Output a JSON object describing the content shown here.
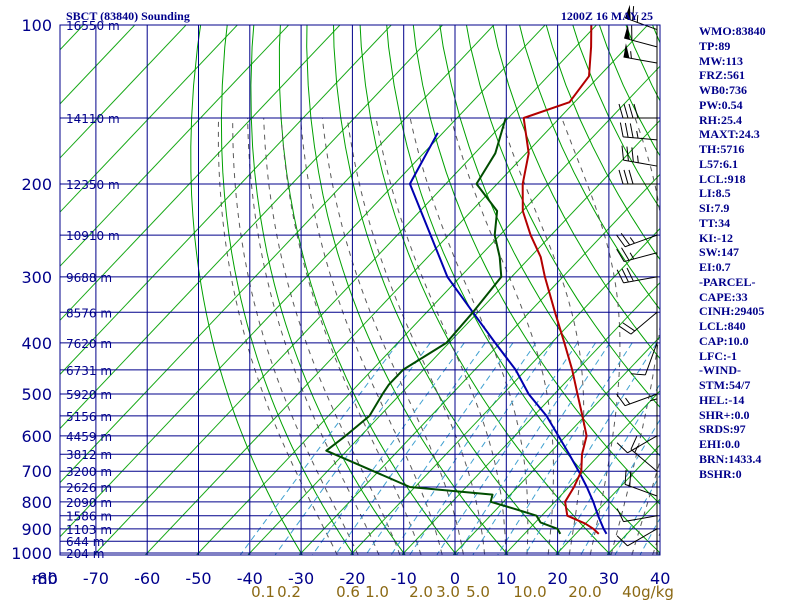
{
  "chart_data": {
    "type": "skew-t",
    "title_left": "SBCT (83840) Sounding",
    "title_right": "1200Z 16 MAY 25",
    "corner_label": "mb",
    "pressure_levels": [
      100,
      200,
      300,
      400,
      500,
      600,
      700,
      800,
      900,
      1000
    ],
    "pressure_labels": [
      "100",
      "200",
      "300",
      "400",
      "500",
      "600",
      "700",
      "800",
      "900",
      "1000"
    ],
    "height_labels": [
      {
        "p": 100,
        "text": "16550 m"
      },
      {
        "p": 150,
        "text": "14110 m"
      },
      {
        "p": 200,
        "text": "12350 m"
      },
      {
        "p": 250,
        "text": "10910 m"
      },
      {
        "p": 300,
        "text": "9688 m"
      },
      {
        "p": 350,
        "text": "8576 m"
      },
      {
        "p": 400,
        "text": "7620 m"
      },
      {
        "p": 450,
        "text": "6731 m"
      },
      {
        "p": 500,
        "text": "5920 m"
      },
      {
        "p": 550,
        "text": "5156 m"
      },
      {
        "p": 600,
        "text": "4459 m"
      },
      {
        "p": 650,
        "text": "3812 m"
      },
      {
        "p": 700,
        "text": "3200 m"
      },
      {
        "p": 750,
        "text": "2626 m"
      },
      {
        "p": 800,
        "text": "2090 m"
      },
      {
        "p": 850,
        "text": "1586 m"
      },
      {
        "p": 900,
        "text": "1103 m"
      },
      {
        "p": 950,
        "text": "644 m"
      },
      {
        "p": 1000,
        "text": "204 m"
      }
    ],
    "temperature_ticks": [
      -80,
      -70,
      -60,
      -50,
      -40,
      -30,
      -20,
      -10,
      0,
      10,
      20,
      30,
      40
    ],
    "temperature_tick_labels": [
      "-80",
      "-70",
      "-60",
      "-50",
      "-40",
      "-30",
      "-20",
      "-10",
      "0",
      "10",
      "20",
      "30",
      "40"
    ],
    "mixing_ratio_labels": [
      "0.1",
      "0.2",
      "0.6",
      "1.0",
      "2.0",
      "3.0",
      "5.0",
      "10.0",
      "20.0",
      "40g/kg"
    ],
    "temperature_profile": [
      {
        "p": 100,
        "t": -71.0
      },
      {
        "p": 110,
        "t": -67.0
      },
      {
        "p": 125,
        "t": -62.0
      },
      {
        "p": 140,
        "t": -61.0
      },
      {
        "p": 150,
        "t": -67.0
      },
      {
        "p": 175,
        "t": -59.5
      },
      {
        "p": 200,
        "t": -55.0
      },
      {
        "p": 225,
        "t": -50.0
      },
      {
        "p": 250,
        "t": -44.0
      },
      {
        "p": 275,
        "t": -38.0
      },
      {
        "p": 300,
        "t": -33.5
      },
      {
        "p": 350,
        "t": -25.0
      },
      {
        "p": 400,
        "t": -17.5
      },
      {
        "p": 450,
        "t": -11.0
      },
      {
        "p": 500,
        "t": -5.5
      },
      {
        "p": 550,
        "t": -0.5
      },
      {
        "p": 600,
        "t": 4.0
      },
      {
        "p": 650,
        "t": 6.5
      },
      {
        "p": 700,
        "t": 9.5
      },
      {
        "p": 750,
        "t": 11.0
      },
      {
        "p": 800,
        "t": 12.0
      },
      {
        "p": 850,
        "t": 15.0
      },
      {
        "p": 880,
        "t": 20.0
      },
      {
        "p": 900,
        "t": 22.5
      },
      {
        "p": 920,
        "t": 24.5
      }
    ],
    "dewpoint_profile": [
      {
        "p": 150,
        "t": -70.5
      },
      {
        "p": 175,
        "t": -66.0
      },
      {
        "p": 200,
        "t": -64.0
      },
      {
        "p": 225,
        "t": -55.0
      },
      {
        "p": 250,
        "t": -51.0
      },
      {
        "p": 275,
        "t": -46.0
      },
      {
        "p": 300,
        "t": -42.0
      },
      {
        "p": 350,
        "t": -41.0
      },
      {
        "p": 400,
        "t": -40.5
      },
      {
        "p": 450,
        "t": -44.0
      },
      {
        "p": 480,
        "t": -44.0
      },
      {
        "p": 500,
        "t": -43.5
      },
      {
        "p": 550,
        "t": -42.0
      },
      {
        "p": 600,
        "t": -43.0
      },
      {
        "p": 640,
        "t": -44.0
      },
      {
        "p": 700,
        "t": -31.0
      },
      {
        "p": 750,
        "t": -21.0
      },
      {
        "p": 775,
        "t": -3.5
      },
      {
        "p": 800,
        "t": -2.5
      },
      {
        "p": 825,
        "t": 3.5
      },
      {
        "p": 850,
        "t": 9.0
      },
      {
        "p": 875,
        "t": 11.0
      },
      {
        "p": 900,
        "t": 15.5
      },
      {
        "p": 920,
        "t": 17.0
      }
    ],
    "parcel_profile": [
      {
        "p": 160,
        "t": -81.0
      },
      {
        "p": 200,
        "t": -77.0
      },
      {
        "p": 250,
        "t": -63.5
      },
      {
        "p": 300,
        "t": -52.5
      },
      {
        "p": 350,
        "t": -41.0
      },
      {
        "p": 400,
        "t": -31.0
      },
      {
        "p": 450,
        "t": -22.0
      },
      {
        "p": 500,
        "t": -15.0
      },
      {
        "p": 550,
        "t": -7.5
      },
      {
        "p": 600,
        "t": -1.5
      },
      {
        "p": 650,
        "t": 4.0
      },
      {
        "p": 700,
        "t": 9.0
      },
      {
        "p": 750,
        "t": 13.5
      },
      {
        "p": 800,
        "t": 17.5
      },
      {
        "p": 850,
        "t": 21.0
      },
      {
        "p": 900,
        "t": 24.5
      },
      {
        "p": 920,
        "t": 26.0
      }
    ],
    "wind_barbs": [
      {
        "p": 102,
        "dir": 290,
        "kt": 65
      },
      {
        "p": 110,
        "dir": 285,
        "kt": 60
      },
      {
        "p": 118,
        "dir": 280,
        "kt": 55
      },
      {
        "p": 150,
        "dir": 270,
        "kt": 40
      },
      {
        "p": 165,
        "dir": 275,
        "kt": 35
      },
      {
        "p": 185,
        "dir": 280,
        "kt": 35
      },
      {
        "p": 200,
        "dir": 270,
        "kt": 30
      },
      {
        "p": 250,
        "dir": 250,
        "kt": 25
      },
      {
        "p": 270,
        "dir": 255,
        "kt": 25
      },
      {
        "p": 300,
        "dir": 260,
        "kt": 30
      },
      {
        "p": 350,
        "dir": 230,
        "kt": 20
      },
      {
        "p": 400,
        "dir": 200,
        "kt": 10
      },
      {
        "p": 450,
        "dir": 180,
        "kt": 5
      },
      {
        "p": 500,
        "dir": 250,
        "kt": 15
      },
      {
        "p": 600,
        "dir": 240,
        "kt": 10
      },
      {
        "p": 700,
        "dir": 310,
        "kt": 15
      },
      {
        "p": 780,
        "dir": 290,
        "kt": 20
      },
      {
        "p": 850,
        "dir": 260,
        "kt": 10
      },
      {
        "p": 900,
        "dir": 240,
        "kt": 10
      }
    ],
    "indices": [
      "WMO:83840",
      "TP:89",
      "MW:113",
      "FRZ:561",
      "WB0:736",
      "PW:0.54",
      "RH:25.4",
      "MAXT:24.3",
      "TH:5716",
      "L57:6.1",
      "LCL:918",
      "LI:8.5",
      "SI:7.9",
      "TT:34",
      "KI:-12",
      "SW:147",
      "EI:0.7",
      "-PARCEL-",
      "CAPE:33",
      "CINH:29405",
      "LCL:840",
      "CAP:10.0",
      "LFC:-1",
      "-WIND-",
      "STM:54/7",
      "HEL:-14",
      "SHR+:0.0",
      "SRDS:97",
      "EHI:0.0",
      "BRN:1433.4",
      "BSHR:0"
    ],
    "colors": {
      "isobar": "#00008b",
      "isotherm": "#00008b",
      "dry_adiabat": "#00a000",
      "moist_adiabat": "#5a5a5a",
      "mixing_ratio": "#40a0d0",
      "temperature": "#b30000",
      "dewpoint": "#004d00",
      "parcel": "#0000b0",
      "text": "#00008b",
      "mixing_label": "#8b6914"
    }
  }
}
